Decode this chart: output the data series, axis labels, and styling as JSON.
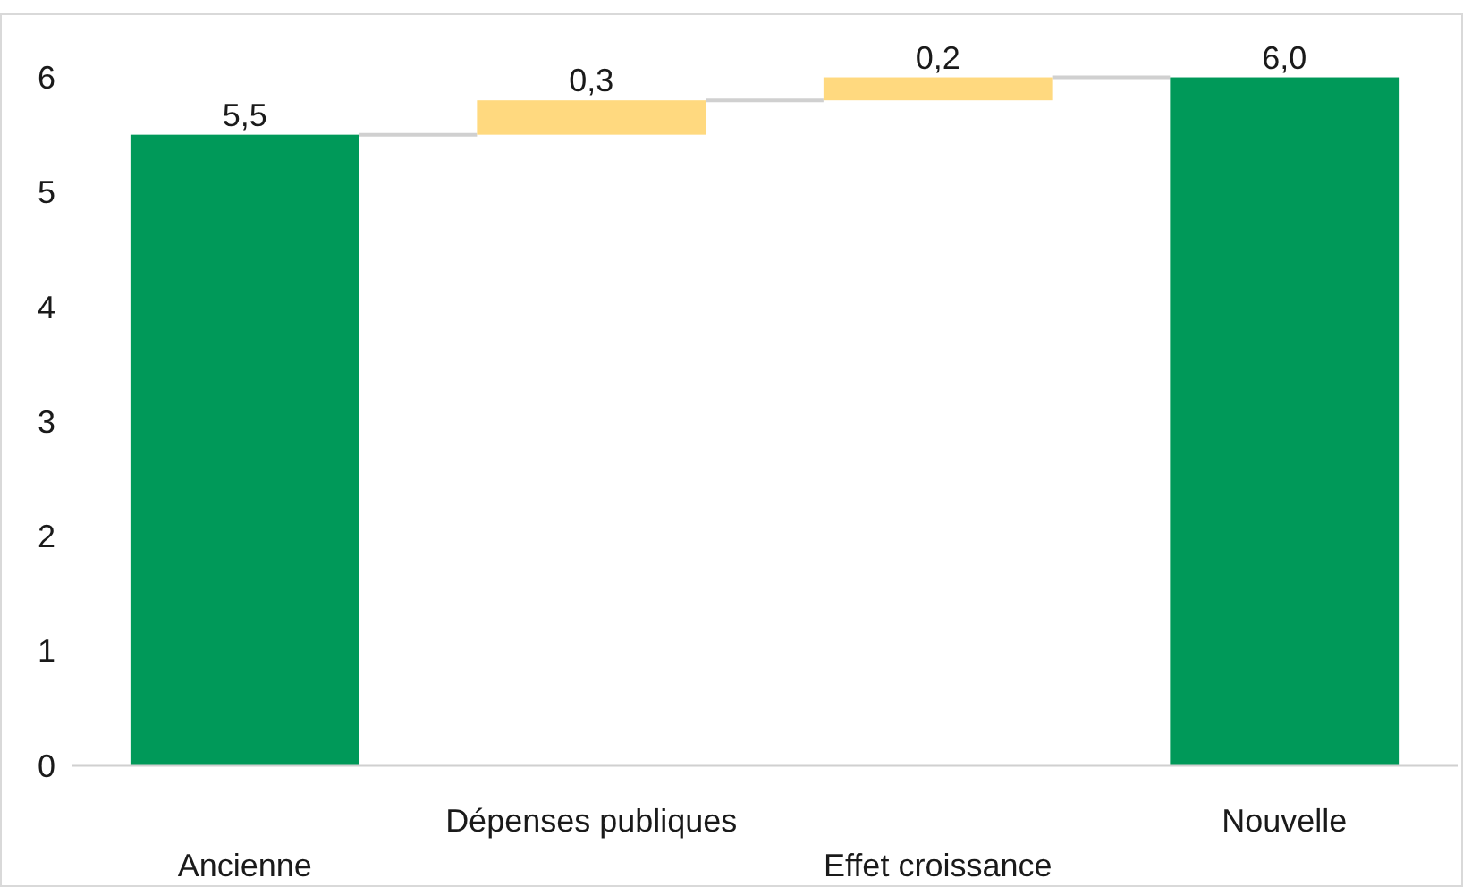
{
  "chart_data": {
    "type": "bar",
    "categories": [
      "Ancienne",
      "Dépenses publiques",
      "Effet croissance",
      "Nouvelle"
    ],
    "values": [
      5.5,
      0.3,
      0.2,
      6.0
    ],
    "base": [
      0,
      5.5,
      5.8,
      0
    ],
    "colors": [
      "#009959",
      "#ffd97f",
      "#ffd97f",
      "#009959"
    ],
    "value_labels": [
      "5,5",
      "0,3",
      "0,2",
      "6,0"
    ],
    "ylim": [
      0,
      6.55
    ],
    "yticks": [
      0,
      1,
      2,
      3,
      4,
      5,
      6
    ],
    "grid": false
  }
}
